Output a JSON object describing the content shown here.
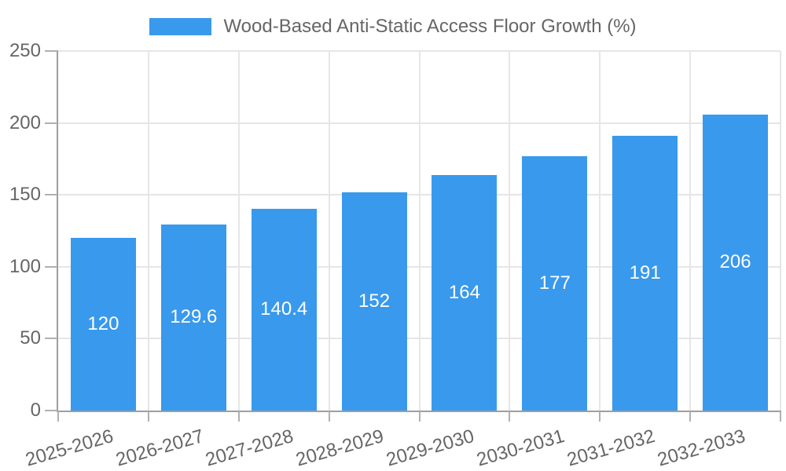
{
  "chart_data": {
    "type": "bar",
    "title": "Wood-Based Anti-Static Access Floor Growth (%)",
    "categories": [
      "2025-2026",
      "2026-2027",
      "2027-2028",
      "2028-2029",
      "2029-2030",
      "2030-2031",
      "2031-2032",
      "2032-2033"
    ],
    "values": [
      120,
      129.6,
      140.4,
      152,
      164,
      177,
      191,
      206
    ],
    "xlabel": "",
    "ylabel": "",
    "ylim": [
      0,
      250
    ],
    "yticks": [
      0,
      50,
      100,
      150,
      200,
      250
    ],
    "grid": true,
    "legend_position": "top",
    "bar_labels_visible": true,
    "colors": {
      "bar": "#3999EC",
      "barLabel": "#ffffff",
      "grid": "#e6e6e6",
      "axis": "#9e9e9e",
      "tick": "#b0b0b0",
      "text": "#666666",
      "background": "#ffffff"
    }
  }
}
